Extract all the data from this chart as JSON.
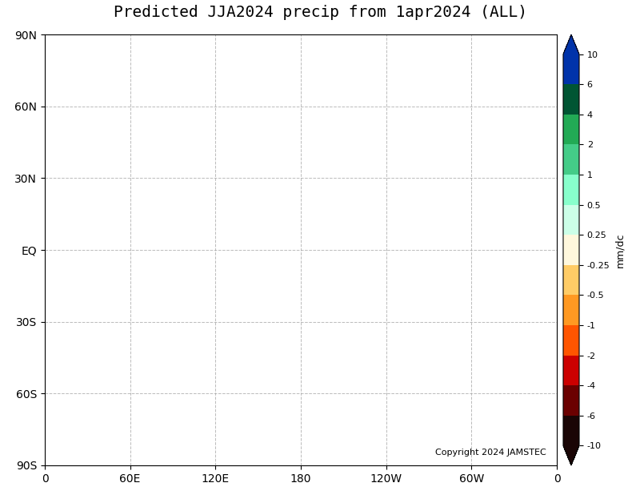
{
  "title": "Predicted JJA2024 precip from 1apr2024 (ALL)",
  "colorbar_label": "mm/dc",
  "copyright": "Copyright 2024 JAMSTEC",
  "levels": [
    -10,
    -6,
    -4,
    -2,
    -1,
    -0.5,
    -0.25,
    0.25,
    0.5,
    1,
    2,
    4,
    6,
    10
  ],
  "colors": [
    "#1a0a0a",
    "#5c0000",
    "#cc0000",
    "#ff4444",
    "#ff9933",
    "#ffcc66",
    "#fff5cc",
    "#ffffff",
    "#ccffee",
    "#99ffcc",
    "#33cc88",
    "#009955",
    "#005522",
    "#0000cc"
  ],
  "background_color": "#ffffff",
  "map_bg": "#ffffff",
  "land_color": "#ffffff",
  "ocean_color": "#ffffff",
  "coast_color": "#000000",
  "grid_color": "#cccccc",
  "grid_linestyle": "--",
  "xlim": [
    0,
    360
  ],
  "ylim": [
    -90,
    90
  ],
  "xticks": [
    0,
    60,
    120,
    180,
    240,
    300,
    360
  ],
  "xticklabels": [
    "0",
    "60E",
    "120E",
    "180",
    "120W",
    "60W",
    "0"
  ],
  "yticks": [
    -90,
    -60,
    -30,
    0,
    30,
    60,
    90
  ],
  "yticklabels": [
    "90S",
    "60S",
    "30S",
    "EQ",
    "30N",
    "60N",
    "90N"
  ],
  "title_fontsize": 14,
  "tick_fontsize": 10,
  "colorbar_tick_labels": [
    "-10",
    "-6",
    "-4",
    "-2",
    "-1",
    "-0.5",
    "-0.25",
    "0.25",
    "0.5",
    "1",
    "2",
    "4",
    "6",
    "10"
  ],
  "fig_width": 8.0,
  "fig_height": 6.18
}
